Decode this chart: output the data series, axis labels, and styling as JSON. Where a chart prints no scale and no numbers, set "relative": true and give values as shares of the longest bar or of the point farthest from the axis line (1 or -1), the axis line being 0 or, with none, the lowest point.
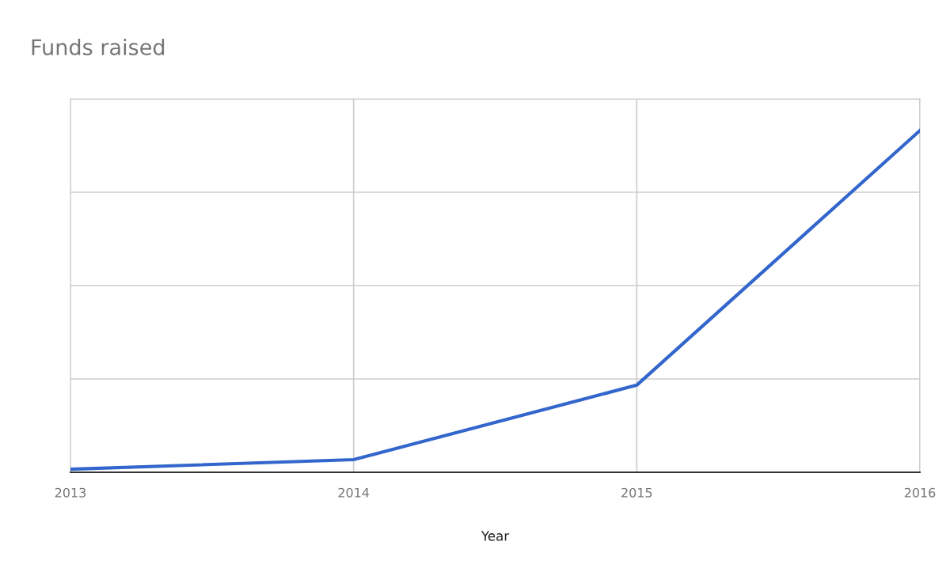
{
  "chart_data": {
    "type": "line",
    "title": "Funds raised",
    "xlabel": "Year",
    "categories": [
      "2013",
      "2014",
      "2015",
      "2016"
    ],
    "series": [
      {
        "color": "#3366cc",
        "values": [
          0.009,
          0.037,
          0.255,
          1
        ]
      }
    ],
    "relative": true,
    "grid": true,
    "legend": false,
    "marker": "none",
    "line_style": "solid"
  }
}
